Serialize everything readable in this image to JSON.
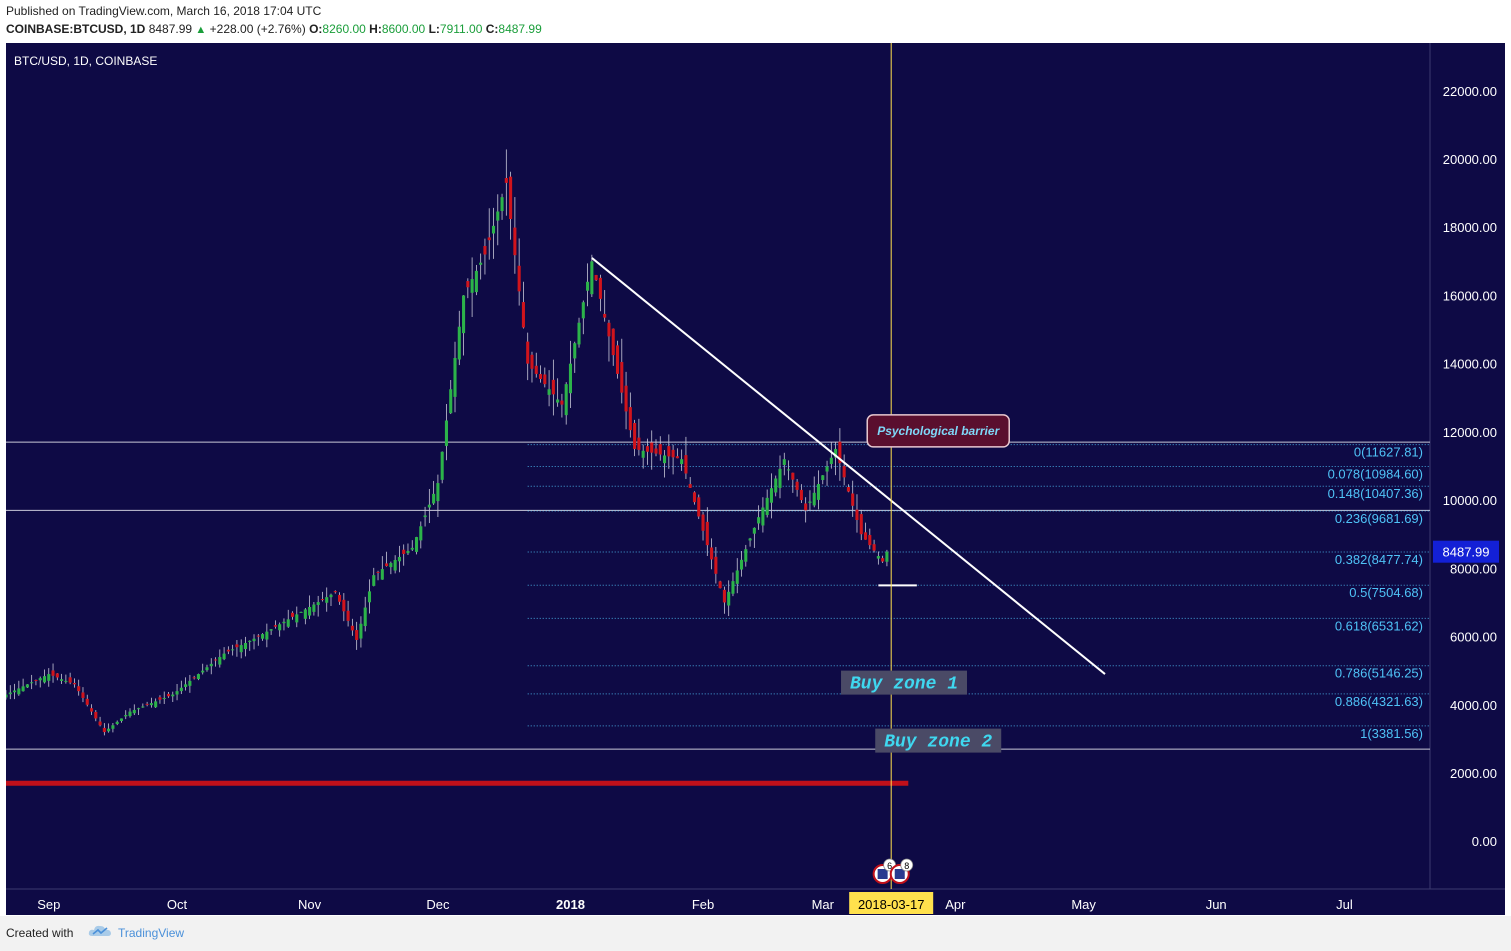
{
  "header": {
    "published": "Published on TradingView.com, March 16, 2018 17:04 UTC",
    "symbol": "COINBASE:BTCUSD, 1D",
    "last": "8487.99",
    "change": "+228.00 (+2.76%)",
    "o_label": "O:",
    "o_value": "8260.00",
    "h_label": "H:",
    "h_value": "8600.00",
    "l_label": "L:",
    "l_value": "7911.00",
    "c_label": "C:",
    "c_value": "8487.99"
  },
  "footer": {
    "created": "Created with",
    "brand": "TradingView"
  },
  "colors": {
    "background": "#0e0a45",
    "up": "#2cb34a",
    "down": "#d0141c",
    "fib": "#4fc3f7",
    "trendline": "#ffffff",
    "support": "#c0101a",
    "crosshair": "#ffe14d",
    "price_tag": "#1320d6"
  },
  "chart_data": {
    "type": "candlestick",
    "title": "BTC/USD, 1D, COINBASE",
    "ylim": [
      -1400,
      23400
    ],
    "y_ticks": [
      0,
      2000,
      4000,
      6000,
      8000,
      10000,
      12000,
      14000,
      16000,
      18000,
      20000,
      22000
    ],
    "y_tick_labels": [
      "0.00",
      "2000.00",
      "4000.00",
      "6000.00",
      "8000.00",
      "10000.00",
      "12000.00",
      "14000.00",
      "16000.00",
      "18000.00",
      "20000.00",
      "22000.00"
    ],
    "x_ticks": [
      "2017-09-01",
      "2017-10-01",
      "2017-11-01",
      "2017-12-01",
      "2018-01-01",
      "2018-02-01",
      "2018-03-01",
      "2018-04-01",
      "2018-05-01",
      "2018-06-01",
      "2018-07-01"
    ],
    "x_tick_labels": [
      "Sep",
      "Oct",
      "Nov",
      "Dec",
      "2018",
      "Feb",
      "Mar",
      "Apr",
      "May",
      "Jun",
      "Jul"
    ],
    "bold_tick": "2018",
    "xlim": [
      "2017-08-22",
      "2018-07-21"
    ],
    "price_tag": "8487.99",
    "crosshair_date": "2018-03-17",
    "candle_waypoints": [
      [
        "2017-08-22",
        4300
      ],
      [
        "2017-09-01",
        4900
      ],
      [
        "2017-09-07",
        4600
      ],
      [
        "2017-09-14",
        3200
      ],
      [
        "2017-09-20",
        3800
      ],
      [
        "2017-09-30",
        4300
      ],
      [
        "2017-10-12",
        5500
      ],
      [
        "2017-10-20",
        6000
      ],
      [
        "2017-11-07",
        7300
      ],
      [
        "2017-11-12",
        5900
      ],
      [
        "2017-11-16",
        7800
      ],
      [
        "2017-11-25",
        8600
      ],
      [
        "2017-12-01",
        10500
      ],
      [
        "2017-12-07",
        16000
      ],
      [
        "2017-12-12",
        17200
      ],
      [
        "2017-12-17",
        19300
      ],
      [
        "2017-12-22",
        14000
      ],
      [
        "2017-12-30",
        12800
      ],
      [
        "2018-01-06",
        17000
      ],
      [
        "2018-01-16",
        11500
      ],
      [
        "2018-01-27",
        11200
      ],
      [
        "2018-02-06",
        7000
      ],
      [
        "2018-02-14",
        9500
      ],
      [
        "2018-02-20",
        11200
      ],
      [
        "2018-02-25",
        9700
      ],
      [
        "2018-03-04",
        11500
      ],
      [
        "2018-03-10",
        9000
      ],
      [
        "2018-03-15",
        8200
      ],
      [
        "2018-03-16",
        8487.99
      ]
    ],
    "fib_levels": [
      {
        "ratio": "0",
        "price": 11627.81,
        "label": "0(11627.81)"
      },
      {
        "ratio": "0.078",
        "price": 10984.6,
        "label": "0.078(10984.60)"
      },
      {
        "ratio": "0.148",
        "price": 10407.36,
        "label": "0.148(10407.36)"
      },
      {
        "ratio": "0.236",
        "price": 9681.69,
        "label": "0.236(9681.69)"
      },
      {
        "ratio": "0.382",
        "price": 8477.74,
        "label": "0.382(8477.74)"
      },
      {
        "ratio": "0.5",
        "price": 7504.68,
        "label": "0.5(7504.68)"
      },
      {
        "ratio": "0.618",
        "price": 6531.62,
        "label": "0.618(6531.62)"
      },
      {
        "ratio": "0.786",
        "price": 5146.25,
        "label": "0.786(5146.25)"
      },
      {
        "ratio": "0.886",
        "price": 4321.63,
        "label": "0.886(4321.63)"
      },
      {
        "ratio": "1",
        "price": 3381.56,
        "label": "1(3381.56)"
      }
    ],
    "fib_start_date": "2017-12-22",
    "horizontal_lines": [
      11700,
      9700,
      2700
    ],
    "support_line": {
      "price": 1700,
      "to_date": "2018-03-21"
    },
    "trendline": {
      "from": [
        "2018-01-06",
        17100
      ],
      "to": [
        "2018-05-06",
        4900
      ]
    },
    "short_marker": {
      "from": "2018-03-14",
      "to": "2018-03-23",
      "price": 7500
    },
    "annotations": [
      {
        "text": "Psychological barrier",
        "date": "2018-03-28",
        "price": 12000,
        "style": "callout"
      },
      {
        "text": "Buy  zone  1",
        "date": "2018-03-20",
        "price": 4650,
        "style": "zone"
      },
      {
        "text": "Buy  zone  2",
        "date": "2018-03-28",
        "price": 2950,
        "style": "zone"
      }
    ],
    "event_badges": [
      {
        "date": "2018-03-15",
        "count": "6"
      },
      {
        "date": "2018-03-19",
        "count": "8"
      }
    ]
  }
}
